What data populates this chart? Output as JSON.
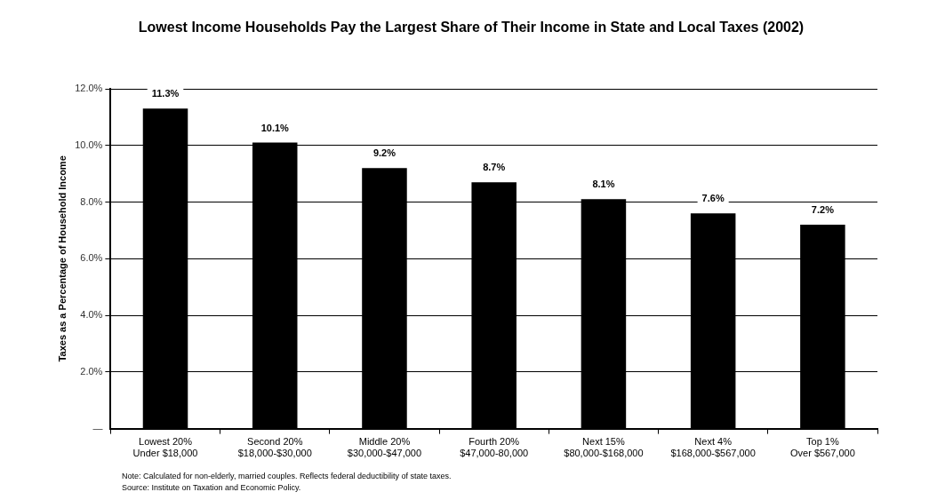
{
  "chart_data": {
    "type": "bar",
    "title": "Lowest Income Households Pay the Largest Share of Their Income in State and Local Taxes (2002)",
    "ylabel": "Taxes as a Percentage of Household Income",
    "categories": [
      "Lowest 20%\nUnder $18,000",
      "Second 20%\n$18,000-$30,000",
      "Middle 20%\n$30,000-$47,000",
      "Fourth 20%\n$47,000-80,000",
      "Next 15%\n$80,000-$168,000",
      "Next 4%\n$168,000-$567,000",
      "Top 1%\nOver $567,000"
    ],
    "values": [
      11.3,
      10.1,
      9.2,
      8.7,
      8.1,
      7.6,
      7.2
    ],
    "value_labels": [
      "11.3%",
      "10.1%",
      "9.2%",
      "8.7%",
      "8.1%",
      "7.6%",
      "7.2%"
    ],
    "color": "#000000",
    "ylim": [
      0,
      12
    ],
    "yticks": [
      {
        "value": 0,
        "label": "—"
      },
      {
        "value": 2,
        "label": "2.0%"
      },
      {
        "value": 4,
        "label": "4.0%"
      },
      {
        "value": 6,
        "label": "6.0%"
      },
      {
        "value": 8,
        "label": "8.0%"
      },
      {
        "value": 10,
        "label": "10.0%"
      },
      {
        "value": 12,
        "label": "12.0%"
      }
    ],
    "grid": "y",
    "legend": false,
    "annotations": [
      "Note: Calculated for non-elderly, married couples.  Reflects federal deductibility of state taxes.",
      "Source: Institute on Taxation and Economic Policy."
    ]
  }
}
